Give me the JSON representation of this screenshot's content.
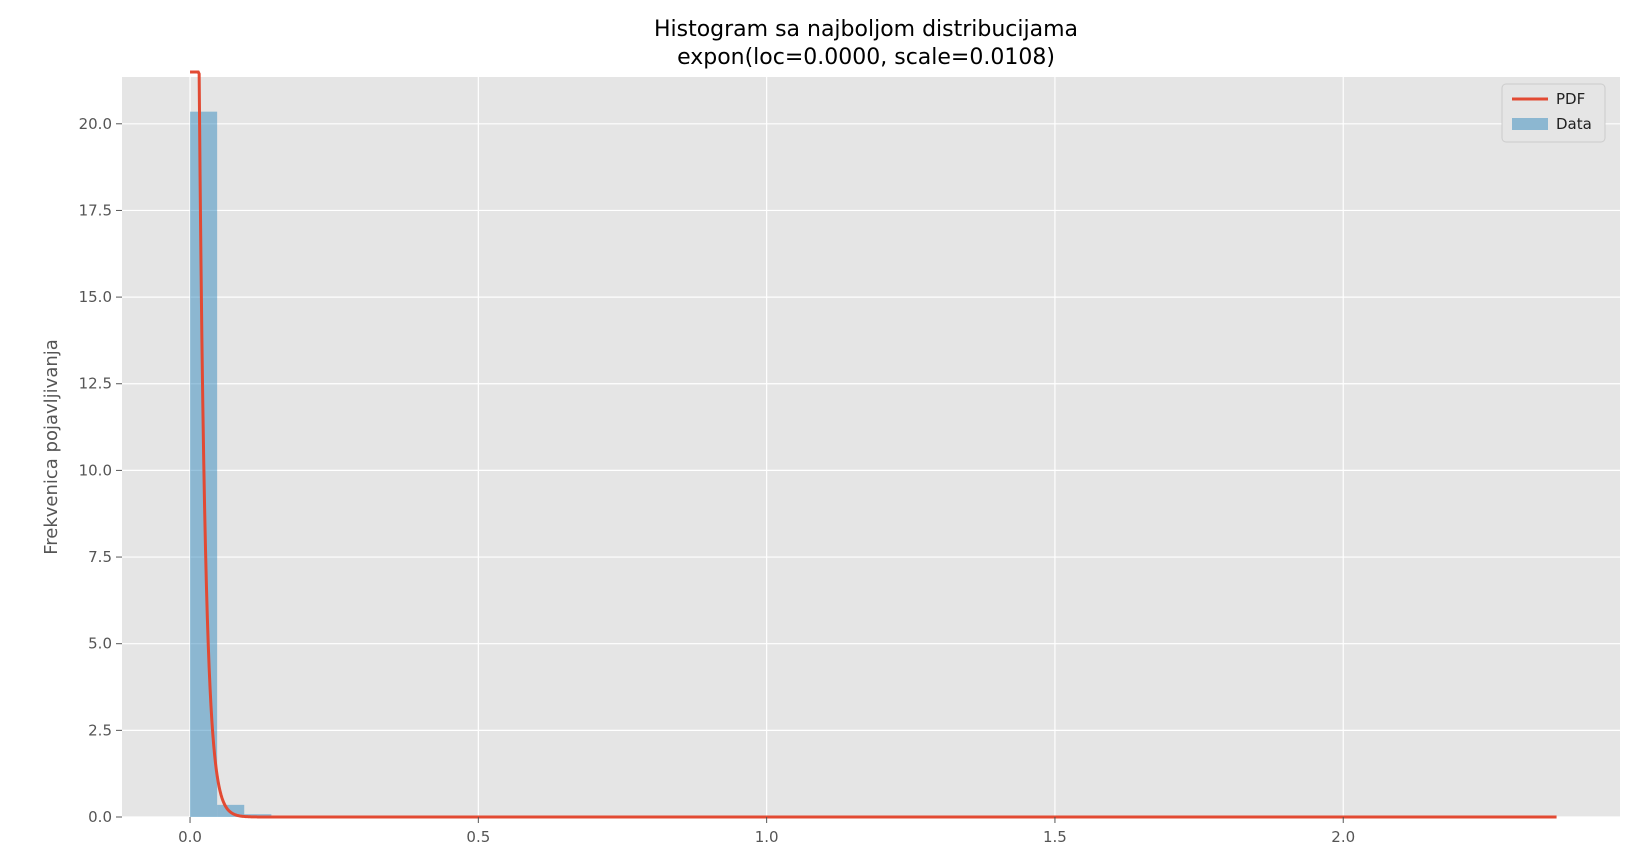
{
  "chart_data": {
    "type": "bar",
    "title": "Histogram sa najboljom distribucijama",
    "subtitle": "expon(loc=0.0000, scale=0.0108)",
    "xlabel": "",
    "ylabel": "Frekvenica pojavljivanja",
    "xlim": [
      -0.118,
      2.48
    ],
    "ylim": [
      0,
      21.35
    ],
    "x_ticks": [
      0.0,
      0.5,
      1.0,
      1.5,
      2.0
    ],
    "x_tick_labels": [
      "0.0",
      "0.5",
      "1.0",
      "1.5",
      "2.0"
    ],
    "y_ticks": [
      0.0,
      2.5,
      5.0,
      7.5,
      10.0,
      12.5,
      15.0,
      17.5,
      20.0
    ],
    "y_tick_labels": [
      "0.0",
      "2.5",
      "5.0",
      "7.5",
      "10.0",
      "12.5",
      "15.0",
      "17.5",
      "20.0"
    ],
    "grid": true,
    "legend_position": "top-right",
    "histogram": {
      "name": "Data",
      "bin_edges": [
        0.0,
        0.047,
        0.094,
        0.141,
        0.188
      ],
      "values": [
        20.35,
        0.35,
        0.08,
        0.02
      ]
    },
    "pdf": {
      "name": "PDF",
      "distribution": "expon",
      "loc": 0.0,
      "scale": 0.0108,
      "x_range": [
        0.0,
        2.37
      ]
    },
    "colors": {
      "pdf": "#e24a33",
      "data": "#348abd",
      "plot_background": "#e5e5e5",
      "grid": "#ffffff"
    }
  }
}
